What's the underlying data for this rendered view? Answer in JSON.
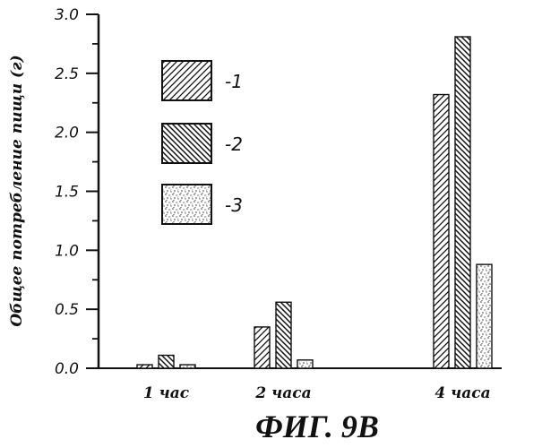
{
  "figure": {
    "caption": "ФИГ. 9B"
  },
  "chart_data": {
    "type": "bar",
    "ylabel": "Общее потребление пищи (г)",
    "xlabel": "",
    "ylim": [
      0,
      3.0
    ],
    "y_ticks": [
      "0.0",
      "0.5",
      "1.0",
      "1.5",
      "2.0",
      "2.5",
      "3.0"
    ],
    "categories": [
      "1 час",
      "2 часа",
      "4 часа"
    ],
    "series": [
      {
        "name": "-1",
        "pattern": "hatch-forward",
        "values": [
          0.03,
          0.35,
          2.32
        ]
      },
      {
        "name": "-2",
        "pattern": "hatch-back",
        "values": [
          0.11,
          0.56,
          2.81
        ]
      },
      {
        "name": "-3",
        "pattern": "stipple",
        "values": [
          0.03,
          0.07,
          0.88
        ]
      }
    ],
    "legend_position": "top-left",
    "grid": false,
    "colors": {
      "ink": "#111111",
      "stipple": "#777777"
    }
  }
}
